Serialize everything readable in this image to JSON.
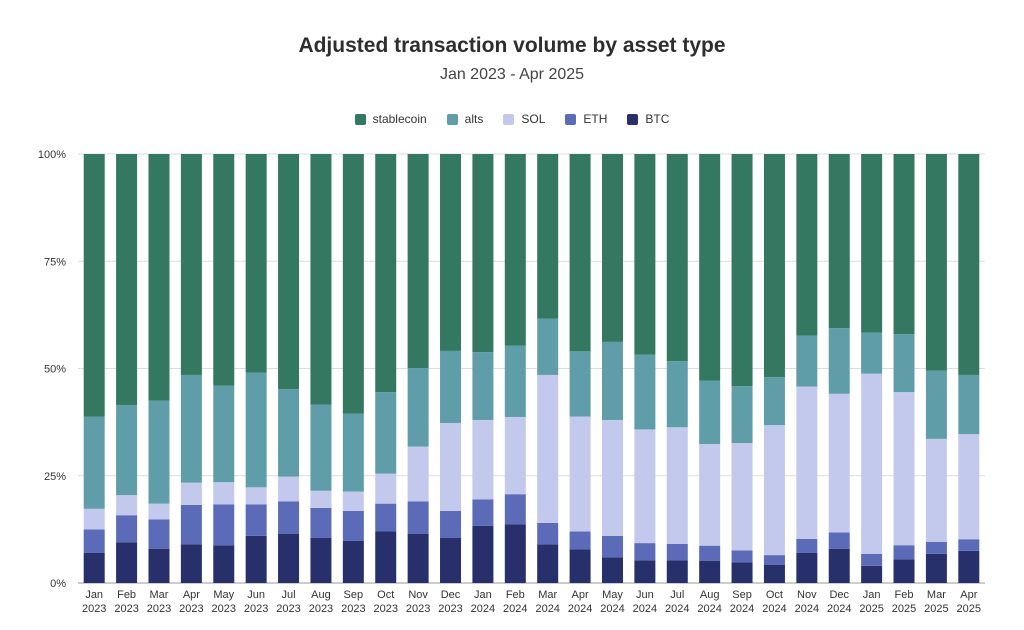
{
  "chart_data": {
    "type": "bar",
    "stacked": true,
    "title": "Adjusted transaction volume by asset type",
    "subtitle": "Jan 2023 - Apr 2025",
    "xlabel": "",
    "ylabel": "",
    "ylim": [
      0,
      100
    ],
    "yticks": [
      "0%",
      "25%",
      "50%",
      "75%",
      "100%"
    ],
    "grid": true,
    "legend_position": "top",
    "categories": [
      [
        "Jan",
        "2023"
      ],
      [
        "Feb",
        "2023"
      ],
      [
        "Mar",
        "2023"
      ],
      [
        "Apr",
        "2023"
      ],
      [
        "May",
        "2023"
      ],
      [
        "Jun",
        "2023"
      ],
      [
        "Jul",
        "2023"
      ],
      [
        "Aug",
        "2023"
      ],
      [
        "Sep",
        "2023"
      ],
      [
        "Oct",
        "2023"
      ],
      [
        "Nov",
        "2023"
      ],
      [
        "Dec",
        "2023"
      ],
      [
        "Jan",
        "2024"
      ],
      [
        "Feb",
        "2024"
      ],
      [
        "Mar",
        "2024"
      ],
      [
        "Apr",
        "2024"
      ],
      [
        "May",
        "2024"
      ],
      [
        "Jun",
        "2024"
      ],
      [
        "Jul",
        "2024"
      ],
      [
        "Aug",
        "2024"
      ],
      [
        "Sep",
        "2024"
      ],
      [
        "Oct",
        "2024"
      ],
      [
        "Nov",
        "2024"
      ],
      [
        "Dec",
        "2024"
      ],
      [
        "Jan",
        "2025"
      ],
      [
        "Feb",
        "2025"
      ],
      [
        "Mar",
        "2025"
      ],
      [
        "Apr",
        "2025"
      ]
    ],
    "series": [
      {
        "name": "BTC",
        "color": "#27306b",
        "values": [
          7,
          9.5,
          8,
          9,
          8.8,
          11,
          11.5,
          10.5,
          9.8,
          12,
          11.5,
          10.5,
          13.3,
          13.7,
          9,
          7.8,
          6,
          5.3,
          5.3,
          5.2,
          4.8,
          4.2,
          7,
          8,
          4,
          5.5,
          6.8,
          7.5
        ]
      },
      {
        "name": "ETH",
        "color": "#5b6bb8",
        "values": [
          5.5,
          6.3,
          6.8,
          9.2,
          9.5,
          7.3,
          7.5,
          7,
          7,
          6.5,
          7.5,
          6.3,
          6.2,
          7,
          5,
          4.2,
          5,
          4,
          3.8,
          3.5,
          2.8,
          2.3,
          3.3,
          3.8,
          2.8,
          3.3,
          2.8,
          2.7
        ]
      },
      {
        "name": "SOL",
        "color": "#c2c9ec",
        "values": [
          4.8,
          4.7,
          3.7,
          5.2,
          5.2,
          4,
          5.8,
          4,
          4.5,
          7,
          12.8,
          20.5,
          18.5,
          18,
          34.5,
          26.8,
          27,
          26.5,
          27.2,
          23.7,
          25,
          30.3,
          35.5,
          32.3,
          42,
          35.7,
          24,
          24.5
        ]
      },
      {
        "name": "alts",
        "color": "#5f9ea9",
        "values": [
          21.5,
          21,
          24,
          25.1,
          22.5,
          26.7,
          20.4,
          20.1,
          18.2,
          19,
          18.3,
          16.8,
          15.8,
          16.6,
          13.1,
          15.2,
          18.2,
          17.4,
          15.4,
          14.8,
          13.3,
          11.2,
          11.9,
          15.3,
          9.6,
          13.5,
          15.9,
          13.8
        ]
      },
      {
        "name": "stablecoin",
        "color": "#347861",
        "values": [
          61.2,
          58.5,
          57.5,
          51.5,
          54,
          51,
          54.8,
          58.4,
          60.5,
          55.5,
          49.9,
          45.9,
          46.2,
          44.7,
          38.4,
          46,
          43.8,
          46.8,
          48.3,
          52.8,
          54.1,
          52,
          42.3,
          40.6,
          41.6,
          42,
          50.5,
          51.5
        ]
      }
    ],
    "legend_order": [
      "stablecoin",
      "alts",
      "SOL",
      "ETH",
      "BTC"
    ]
  }
}
